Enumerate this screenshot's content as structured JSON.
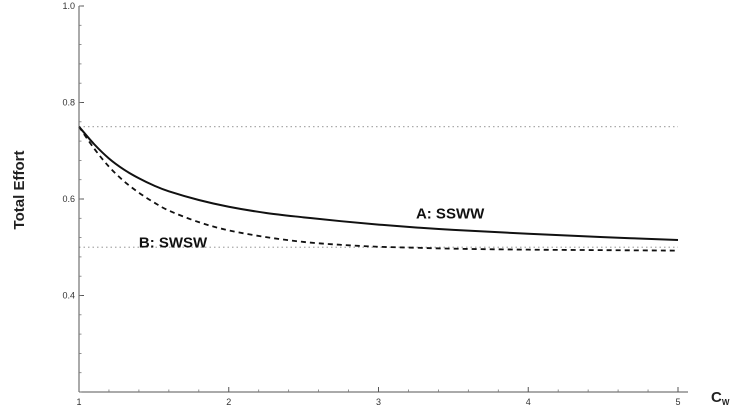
{
  "chart_data": {
    "type": "line",
    "title": "",
    "xlabel": "C",
    "xlabel_subscript": "W",
    "ylabel": "Total Effort",
    "xlim": [
      1,
      5
    ],
    "ylim": [
      0.2,
      1.0
    ],
    "xticks": [
      1,
      2,
      3,
      4,
      5
    ],
    "yticks": [
      0.4,
      0.6,
      0.8,
      1.0
    ],
    "ytick_labels": [
      "0.4",
      "0.6",
      "0.8",
      "1.0"
    ],
    "grid": false,
    "reference_lines": [
      {
        "y": 0.75,
        "style": "dotted",
        "color": "#aaaaaa"
      },
      {
        "y": 0.5,
        "style": "dotted",
        "color": "#aaaaaa"
      }
    ],
    "series": [
      {
        "name": "A: SSWW",
        "style": "solid",
        "color": "#111111",
        "label_at": [
          3.25,
          0.56
        ],
        "x": [
          1.0,
          1.1,
          1.2,
          1.3,
          1.4,
          1.5,
          1.6,
          1.8,
          2.0,
          2.25,
          2.5,
          2.75,
          3.0,
          3.25,
          3.5,
          4.0,
          4.5,
          5.0
        ],
        "y": [
          0.75,
          0.714,
          0.684,
          0.661,
          0.643,
          0.628,
          0.616,
          0.598,
          0.584,
          0.571,
          0.562,
          0.554,
          0.547,
          0.541,
          0.536,
          0.528,
          0.521,
          0.515
        ]
      },
      {
        "name": "B: SWSW",
        "style": "dashed",
        "color": "#111111",
        "label_at": [
          1.4,
          0.5
        ],
        "x": [
          1.0,
          1.1,
          1.2,
          1.3,
          1.4,
          1.5,
          1.6,
          1.8,
          2.0,
          2.25,
          2.5,
          2.75,
          3.0,
          3.25,
          3.5,
          4.0,
          4.5,
          5.0
        ],
        "y": [
          0.75,
          0.705,
          0.667,
          0.637,
          0.613,
          0.593,
          0.576,
          0.552,
          0.535,
          0.521,
          0.511,
          0.505,
          0.501,
          0.499,
          0.497,
          0.495,
          0.494,
          0.493
        ]
      }
    ]
  }
}
